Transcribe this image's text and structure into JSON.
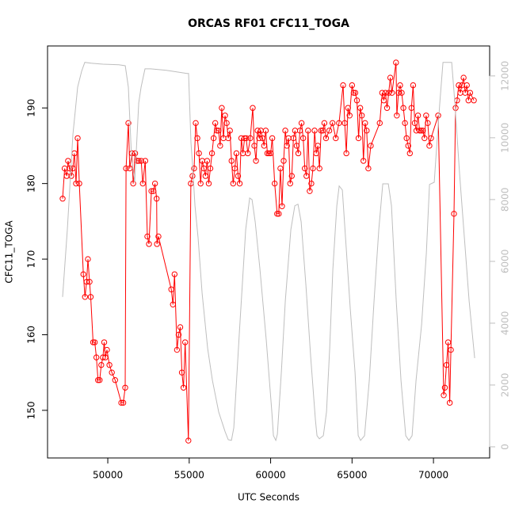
{
  "chart_data": {
    "type": "line",
    "title": "ORCAS RF01 CFC11_TOGA",
    "x_label": "UTC Seconds",
    "y_label": "CFC11_TOGA",
    "xlim": [
      46300,
      73450
    ],
    "xticks": [
      50000,
      55000,
      60000,
      65000,
      70000
    ],
    "ylim": [
      143.7,
      198.2
    ],
    "yticks": [
      150,
      160,
      170,
      180,
      190
    ],
    "y2lim": [
      -360,
      12970
    ],
    "y2ticks": [
      0,
      2000,
      4000,
      6000,
      8000,
      10000,
      12000
    ],
    "series": [
      {
        "color": "#ff0000",
        "marker": "circle",
        "x": [
          47226,
          47350,
          47480,
          47560,
          47650,
          47760,
          47850,
          47950,
          48050,
          48150,
          48250,
          48500,
          48600,
          48700,
          48780,
          48880,
          48950,
          49100,
          49200,
          49300,
          49400,
          49500,
          49600,
          49700,
          49780,
          49850,
          49950,
          50100,
          50250,
          50450,
          50830,
          50950,
          51070,
          51120,
          51265,
          51350,
          51480,
          51560,
          51680,
          51800,
          51900,
          52050,
          52150,
          52300,
          52430,
          52530,
          52680,
          52800,
          52900,
          53000,
          53020,
          53110,
          53900,
          54000,
          54100,
          54250,
          54350,
          54450,
          54550,
          54650,
          54750,
          54950,
          55100,
          55200,
          55300,
          55400,
          55500,
          55600,
          55700,
          55800,
          55900,
          56000,
          56100,
          56200,
          56300,
          56400,
          56500,
          56600,
          56700,
          56800,
          56900,
          57000,
          57100,
          57200,
          57300,
          57400,
          57500,
          57600,
          57700,
          57800,
          57900,
          58000,
          58100,
          58200,
          58300,
          58400,
          58500,
          58600,
          58750,
          58900,
          59000,
          59100,
          59200,
          59300,
          59400,
          59500,
          59600,
          59700,
          59800,
          59900,
          60000,
          60100,
          60250,
          60400,
          60500,
          60600,
          60700,
          60800,
          60900,
          61000,
          61100,
          61200,
          61300,
          61400,
          61500,
          61600,
          61700,
          61800,
          61900,
          62000,
          62100,
          62200,
          62300,
          62400,
          62500,
          62600,
          62700,
          62800,
          62900,
          63000,
          63100,
          63200,
          63300,
          63400,
          63600,
          63800,
          64000,
          64200,
          64450,
          64550,
          64650,
          64750,
          64850,
          65000,
          65100,
          65200,
          65300,
          65400,
          65500,
          65600,
          65700,
          65800,
          65900,
          66000,
          66150,
          66700,
          66850,
          66950,
          67050,
          67150,
          67250,
          67350,
          67450,
          67700,
          67750,
          67850,
          67950,
          68050,
          68150,
          68250,
          68350,
          68450,
          68550,
          68650,
          68750,
          68850,
          68950,
          69050,
          69150,
          69250,
          69350,
          69450,
          69550,
          69650,
          69750,
          69850,
          70290,
          70630,
          70700,
          70800,
          70900,
          71000,
          71070,
          71260,
          71360,
          71450,
          71550,
          71650,
          71750,
          71850,
          71950,
          72050,
          72150,
          72250,
          72480
        ],
        "values": [
          178,
          182,
          181,
          183,
          182,
          181,
          182,
          184,
          180,
          186,
          180,
          168,
          165,
          167,
          170,
          167,
          165,
          159,
          159,
          157,
          154,
          154,
          156,
          157,
          159,
          157,
          158,
          156,
          155,
          154,
          151,
          151,
          153,
          182,
          188,
          182,
          184,
          180,
          184,
          183,
          183,
          183,
          180,
          183,
          173,
          172,
          179,
          179,
          180,
          178,
          172,
          173,
          166,
          164,
          168,
          158,
          160,
          161,
          155,
          153,
          159,
          146,
          180,
          181,
          182,
          188,
          186,
          184,
          180,
          183,
          182,
          181,
          183,
          180,
          182,
          184,
          186,
          188,
          187,
          187,
          185,
          190,
          186,
          189,
          188,
          186,
          187,
          183,
          180,
          182,
          184,
          181,
          180,
          186,
          184,
          186,
          186,
          184,
          186,
          190,
          185,
          183,
          187,
          186,
          187,
          186,
          185,
          187,
          184,
          184,
          184,
          186,
          180,
          176,
          176,
          182,
          177,
          183,
          187,
          185,
          186,
          180,
          181,
          186,
          187,
          185,
          184,
          187,
          188,
          186,
          182,
          181,
          187,
          179,
          180,
          182,
          187,
          184,
          185,
          182,
          187,
          187,
          188,
          186,
          187,
          188,
          186,
          188,
          193,
          188,
          184,
          190,
          189,
          193,
          192,
          192,
          191,
          186,
          190,
          189,
          183,
          188,
          187,
          182,
          185,
          188,
          192,
          191,
          192,
          190,
          192,
          194,
          192,
          196,
          189,
          192,
          193,
          192,
          190,
          188,
          186,
          185,
          184,
          190,
          193,
          188,
          187,
          189,
          187,
          187,
          187,
          186,
          189,
          188,
          185,
          186,
          189,
          152,
          153,
          156,
          159,
          151,
          158,
          176,
          190,
          191,
          193,
          192,
          193,
          194,
          192,
          193,
          191,
          192,
          191
        ]
      },
      {
        "color": "#bebebe",
        "axis": "y2",
        "x": [
          47226,
          47518,
          47859,
          48151,
          48394,
          48589,
          48978,
          49708,
          50681,
          51071,
          51265,
          51460,
          51654,
          51898,
          52044,
          52287,
          52628,
          53601,
          54866,
          54963,
          55109,
          55207,
          55353,
          55547,
          55791,
          56131,
          56423,
          56812,
          57202,
          57396,
          57591,
          57737,
          58078,
          58467,
          58710,
          58856,
          59051,
          59343,
          59732,
          60073,
          60170,
          60316,
          60413,
          60657,
          60900,
          61241,
          61484,
          61678,
          61873,
          62165,
          62457,
          62749,
          62846,
          62992,
          63235,
          63430,
          63625,
          63819,
          64062,
          64208,
          64403,
          64598,
          64890,
          65182,
          65376,
          65522,
          65766,
          66058,
          66350,
          66642,
          66885,
          67226,
          67420,
          67712,
          68004,
          68296,
          68491,
          68685,
          68929,
          69270,
          69562,
          69756,
          70048,
          70146,
          70389,
          70584,
          71119,
          71314,
          71606,
          71897,
          72189,
          72530
        ],
        "values": [
          4850,
          7030,
          10100,
          11640,
          12150,
          12440,
          12410,
          12380,
          12360,
          12330,
          11640,
          9330,
          8560,
          11130,
          11640,
          12230,
          12230,
          12180,
          12080,
          12080,
          9850,
          9080,
          7800,
          6770,
          4970,
          3180,
          2150,
          1130,
          490,
          230,
          210,
          620,
          3690,
          7030,
          8050,
          8000,
          7280,
          5740,
          3440,
          1130,
          360,
          210,
          410,
          2410,
          4720,
          7030,
          7800,
          7850,
          7280,
          5230,
          2920,
          870,
          360,
          260,
          360,
          1130,
          3180,
          5740,
          7800,
          8440,
          8310,
          6770,
          4460,
          2410,
          360,
          210,
          360,
          2150,
          4720,
          7030,
          8510,
          8510,
          7800,
          4720,
          2150,
          360,
          210,
          360,
          2150,
          3950,
          6260,
          8490,
          8560,
          9330,
          11130,
          12440,
          12440,
          11130,
          8820,
          6770,
          4720,
          2870
        ]
      }
    ]
  }
}
